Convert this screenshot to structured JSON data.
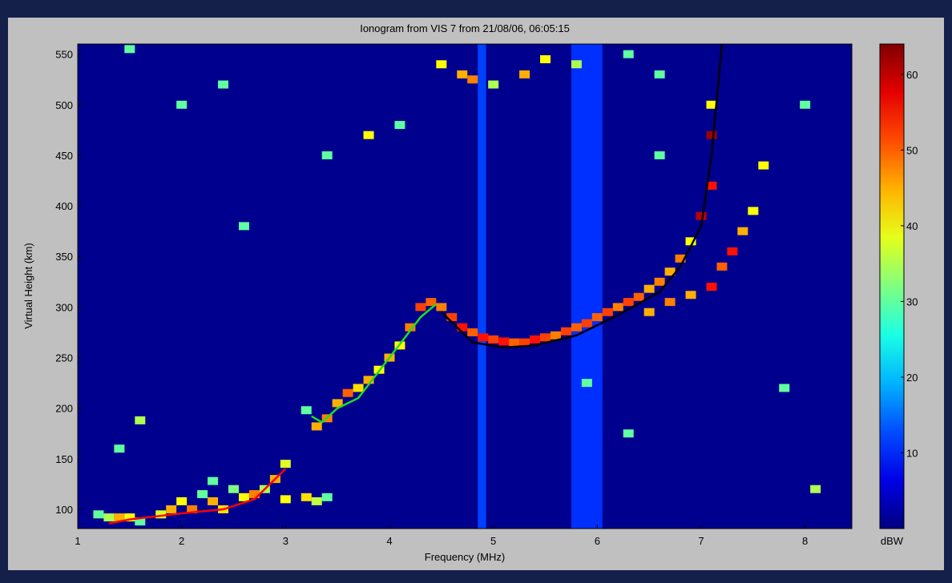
{
  "chart_data": {
    "type": "ionogram",
    "title": "Ionogram from VIS 7 from 21/08/06, 06:05:15",
    "x_label": "Frequency (MHz)",
    "y_label": "Virtual Height (km)",
    "xlim": [
      1,
      8.45
    ],
    "xticks": [
      1,
      2,
      3,
      4,
      5,
      6,
      7,
      8
    ],
    "ylim": [
      81,
      560
    ],
    "yticks": [
      100,
      150,
      200,
      250,
      300,
      350,
      400,
      450,
      500,
      550
    ],
    "background_value": 1,
    "colorbar": {
      "label": "dBW",
      "clim": [
        0,
        64
      ],
      "ticks": [
        10,
        20,
        30,
        40,
        50,
        60
      ]
    },
    "bands": [
      {
        "x": [
          4.85,
          4.93
        ],
        "value": 12
      },
      {
        "x": [
          5.75,
          6.05
        ],
        "value": 11
      }
    ],
    "cells": [
      [
        1.3,
        92,
        35
      ],
      [
        1.4,
        92,
        45
      ],
      [
        1.5,
        92,
        40
      ],
      [
        1.6,
        88,
        30
      ],
      [
        1.8,
        95,
        38
      ],
      [
        1.9,
        100,
        45
      ],
      [
        2.0,
        108,
        40
      ],
      [
        2.1,
        100,
        48
      ],
      [
        2.2,
        115,
        30
      ],
      [
        2.3,
        108,
        45
      ],
      [
        2.4,
        100,
        42
      ],
      [
        2.5,
        120,
        32
      ],
      [
        2.6,
        112,
        40
      ],
      [
        2.7,
        115,
        48
      ],
      [
        2.8,
        120,
        35
      ],
      [
        2.9,
        130,
        45
      ],
      [
        3.0,
        145,
        38
      ],
      [
        3.0,
        110,
        40
      ],
      [
        3.2,
        112,
        42
      ],
      [
        3.3,
        108,
        36
      ],
      [
        3.4,
        112,
        30
      ],
      [
        1.2,
        95,
        30
      ],
      [
        2.3,
        128,
        30
      ],
      [
        3.2,
        198,
        30
      ],
      [
        3.3,
        182,
        45
      ],
      [
        3.4,
        190,
        48
      ],
      [
        3.5,
        205,
        45
      ],
      [
        3.6,
        215,
        50
      ],
      [
        3.7,
        220,
        42
      ],
      [
        3.8,
        228,
        45
      ],
      [
        3.9,
        238,
        40
      ],
      [
        4.0,
        250,
        45
      ],
      [
        4.1,
        262,
        40
      ],
      [
        4.2,
        280,
        48
      ],
      [
        4.3,
        300,
        52
      ],
      [
        4.4,
        305,
        50
      ],
      [
        4.5,
        300,
        48
      ],
      [
        4.6,
        290,
        52
      ],
      [
        4.7,
        280,
        55
      ],
      [
        4.8,
        275,
        50
      ],
      [
        4.9,
        270,
        55
      ],
      [
        5.0,
        268,
        52
      ],
      [
        5.1,
        266,
        55
      ],
      [
        5.2,
        265,
        50
      ],
      [
        5.3,
        265,
        52
      ],
      [
        5.4,
        268,
        55
      ],
      [
        5.5,
        270,
        52
      ],
      [
        5.6,
        272,
        48
      ],
      [
        5.7,
        276,
        52
      ],
      [
        5.8,
        280,
        50
      ],
      [
        5.9,
        284,
        52
      ],
      [
        6.0,
        290,
        50
      ],
      [
        6.1,
        295,
        52
      ],
      [
        6.2,
        300,
        48
      ],
      [
        6.3,
        305,
        52
      ],
      [
        6.4,
        310,
        50
      ],
      [
        6.5,
        318,
        45
      ],
      [
        6.6,
        325,
        48
      ],
      [
        6.7,
        335,
        45
      ],
      [
        6.8,
        348,
        48
      ],
      [
        6.9,
        365,
        40
      ],
      [
        7.0,
        390,
        60
      ],
      [
        7.1,
        420,
        55
      ],
      [
        7.1,
        470,
        62
      ],
      [
        7.1,
        500,
        40
      ],
      [
        6.5,
        295,
        45
      ],
      [
        6.7,
        305,
        48
      ],
      [
        6.9,
        312,
        45
      ],
      [
        7.1,
        320,
        55
      ],
      [
        7.2,
        340,
        50
      ],
      [
        7.3,
        355,
        55
      ],
      [
        7.4,
        375,
        45
      ],
      [
        7.5,
        395,
        40
      ],
      [
        7.6,
        440,
        40
      ],
      [
        4.5,
        540,
        40
      ],
      [
        4.7,
        530,
        45
      ],
      [
        4.8,
        525,
        48
      ],
      [
        5.0,
        520,
        35
      ],
      [
        5.3,
        530,
        45
      ],
      [
        5.5,
        545,
        40
      ],
      [
        5.8,
        540,
        35
      ],
      [
        6.3,
        550,
        30
      ],
      [
        1.5,
        555,
        30
      ],
      [
        2.0,
        500,
        30
      ],
      [
        2.4,
        520,
        30
      ],
      [
        2.6,
        380,
        30
      ],
      [
        3.4,
        450,
        30
      ],
      [
        4.1,
        480,
        30
      ],
      [
        1.4,
        160,
        30
      ],
      [
        1.6,
        188,
        35
      ],
      [
        5.9,
        225,
        30
      ],
      [
        6.3,
        175,
        30
      ],
      [
        8.0,
        500,
        30
      ],
      [
        8.1,
        120,
        35
      ],
      [
        7.8,
        220,
        30
      ],
      [
        3.8,
        470,
        40
      ],
      [
        6.6,
        530,
        30
      ],
      [
        6.6,
        450,
        30
      ]
    ],
    "series": [
      {
        "color": "#ff0000",
        "x": [
          1.3,
          1.5,
          2.0,
          2.4,
          2.7,
          3.0
        ],
        "values": [
          86,
          90,
          96,
          100,
          110,
          140
        ]
      },
      {
        "color": "#22dd22",
        "x": [
          3.25,
          3.35,
          3.5,
          3.7,
          4.0,
          4.3,
          4.45
        ],
        "values": [
          192,
          186,
          200,
          210,
          250,
          290,
          303
        ]
      },
      {
        "color": "#000000",
        "x": [
          4.5,
          4.8,
          5.1,
          5.4,
          5.8,
          6.2,
          6.6,
          6.8,
          7.0,
          7.1,
          7.2
        ],
        "values": [
          295,
          265,
          260,
          262,
          272,
          292,
          315,
          340,
          380,
          450,
          560
        ]
      }
    ]
  }
}
